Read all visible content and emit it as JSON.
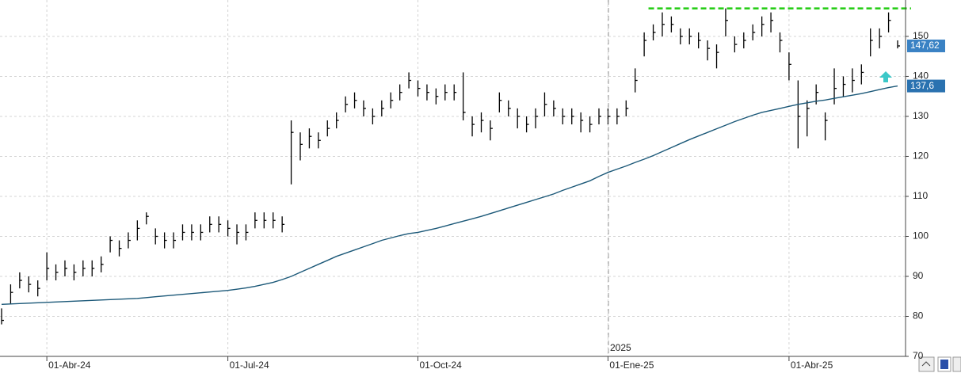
{
  "chart_data": {
    "type": "ohlc",
    "categories": [
      null,
      null,
      null,
      null,
      null,
      "01-Abr-24",
      null,
      null,
      null,
      null,
      null,
      null,
      null,
      null,
      null,
      null,
      null,
      null,
      null,
      null,
      null,
      null,
      null,
      null,
      null,
      "01-Jul-24",
      null,
      null,
      null,
      null,
      null,
      null,
      null,
      null,
      null,
      null,
      null,
      null,
      null,
      null,
      null,
      null,
      null,
      null,
      null,
      null,
      "01-Oct-24",
      null,
      null,
      null,
      null,
      null,
      null,
      null,
      null,
      null,
      null,
      null,
      null,
      null,
      null,
      null,
      null,
      null,
      null,
      null,
      null,
      "01-Ene-25",
      null,
      null,
      null,
      null,
      null,
      null,
      null,
      null,
      null,
      null,
      null,
      null,
      null,
      null,
      null,
      null,
      null,
      null,
      null,
      "01-Abr-25",
      null,
      null,
      null,
      null,
      null,
      null,
      null,
      null,
      null,
      null,
      null,
      null
    ],
    "close": [
      79,
      86,
      89,
      88,
      87,
      92,
      91,
      92,
      91,
      92,
      92,
      93,
      99,
      97,
      99,
      102,
      105,
      100,
      99,
      99,
      101,
      101,
      101,
      103,
      103,
      102,
      101,
      101,
      104,
      104,
      104,
      103,
      126,
      123,
      125,
      124,
      127,
      129,
      133,
      134,
      132,
      130,
      132,
      134,
      136,
      139,
      137,
      136,
      135,
      136,
      136,
      131,
      128,
      129,
      127,
      134,
      132,
      130,
      128,
      130,
      133,
      132,
      130,
      130,
      129,
      128,
      130,
      130,
      130,
      132,
      139,
      149,
      151,
      153,
      153,
      150,
      150,
      149,
      147,
      146,
      154,
      148,
      149,
      151,
      153,
      154,
      149,
      143,
      130,
      132,
      136,
      129,
      137,
      138,
      139,
      141,
      149,
      150,
      154,
      147.62
    ],
    "high": [
      82,
      88,
      91,
      90,
      89,
      96,
      93,
      94,
      93,
      94,
      94,
      95,
      100,
      99,
      101,
      104,
      106,
      102,
      101,
      101,
      103,
      103,
      103,
      105,
      105,
      104,
      103,
      103,
      106,
      106,
      106,
      105,
      129,
      126,
      127,
      126,
      129,
      131,
      135,
      136,
      134,
      132,
      134,
      136,
      138,
      141,
      139,
      138,
      137,
      138,
      138,
      141,
      130,
      131,
      129,
      136,
      134,
      132,
      130,
      132,
      136,
      134,
      132,
      132,
      131,
      130,
      132,
      132,
      132,
      134,
      142,
      151,
      153,
      156,
      155,
      152,
      152,
      151,
      149,
      148,
      157,
      150,
      151,
      153,
      155,
      156,
      151,
      146,
      139,
      134,
      138,
      131,
      142,
      140,
      142,
      143,
      152,
      152,
      156,
      149
    ],
    "low": [
      78,
      83,
      87,
      86,
      85,
      89,
      89,
      90,
      89,
      90,
      90,
      91,
      96,
      95,
      97,
      99,
      103,
      98,
      97,
      97,
      99,
      99,
      99,
      101,
      101,
      100,
      98,
      99,
      102,
      102,
      102,
      101,
      113,
      119,
      122,
      122,
      125,
      127,
      131,
      132,
      130,
      128,
      130,
      132,
      134,
      137,
      135,
      134,
      133,
      134,
      134,
      129,
      125,
      126,
      124,
      131,
      130,
      127,
      126,
      127,
      130,
      130,
      128,
      128,
      126,
      126,
      128,
      128,
      128,
      130,
      136,
      145,
      149,
      150,
      151,
      148,
      148,
      147,
      144,
      142,
      150,
      146,
      147,
      149,
      150,
      151,
      146,
      139,
      122,
      125,
      133,
      124,
      133,
      135,
      136,
      138,
      145,
      147,
      151,
      147
    ],
    "color": "#000000",
    "moving_average": {
      "color": "#1b5878",
      "values": [
        83,
        83.1,
        83.2,
        83.3,
        83.4,
        83.5,
        83.6,
        83.7,
        83.8,
        83.9,
        84,
        84.1,
        84.2,
        84.3,
        84.4,
        84.5,
        84.7,
        84.9,
        85.1,
        85.3,
        85.5,
        85.7,
        85.9,
        86.1,
        86.3,
        86.5,
        86.8,
        87.1,
        87.5,
        88,
        88.5,
        89.2,
        90,
        91,
        92,
        93,
        94,
        95,
        95.8,
        96.6,
        97.4,
        98.2,
        99,
        99.6,
        100.2,
        100.7,
        101,
        101.5,
        102,
        102.6,
        103.2,
        103.8,
        104.4,
        105,
        105.7,
        106.4,
        107.1,
        107.8,
        108.5,
        109.2,
        109.9,
        110.6,
        111.5,
        112.3,
        113.1,
        113.9,
        115,
        116,
        116.8,
        117.6,
        118.5,
        119.3,
        120.2,
        121.2,
        122.2,
        123.2,
        124.2,
        125.1,
        126,
        126.9,
        127.8,
        128.7,
        129.5,
        130.3,
        131,
        131.5,
        132,
        132.5,
        133,
        133.4,
        133.8,
        134.1,
        134.5,
        134.9,
        135.3,
        135.7,
        136.2,
        136.7,
        137.2,
        137.6
      ],
      "last_label": {
        "value": 137.6,
        "label": "137,6"
      }
    },
    "last_price": {
      "value": 147.62,
      "label": "147,62"
    },
    "resistance": {
      "value": 157,
      "color": "#22cc11"
    },
    "year_label": "2025",
    "ylim": [
      70,
      159.1
    ],
    "yticks": [
      70,
      80,
      90,
      100,
      110,
      120,
      130,
      140,
      150
    ],
    "grid": true
  }
}
